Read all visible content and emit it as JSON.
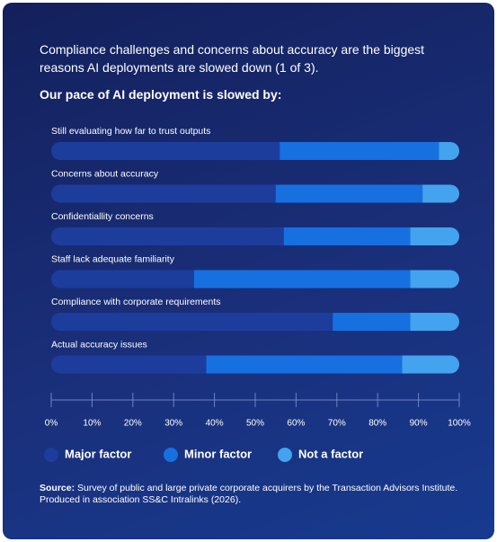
{
  "chart_data": {
    "type": "stacked-barh",
    "title": "Compliance challenges and concerns about accuracy are the biggest reasons AI deployments are slowed down (1 of 3).",
    "subtitle": "Our pace of AI deployment is slowed by:",
    "categories": [
      "Still evaluating how far to trust outputs",
      "Concerns about accuracy",
      "Confidentiallity concerns",
      "Staff lack adequate familiarity",
      "Compliance with corporate requirements",
      "Actual accuracy issues"
    ],
    "series": [
      {
        "name": "Major factor",
        "color": "#1d3d9c",
        "values": [
          56,
          55,
          57,
          35,
          69,
          38
        ]
      },
      {
        "name": "Minor factor",
        "color": "#1670e0",
        "values": [
          39,
          36,
          31,
          53,
          19,
          48
        ]
      },
      {
        "name": "Not a factor",
        "color": "#43a3ee",
        "values": [
          5,
          9,
          12,
          12,
          12,
          14
        ]
      }
    ],
    "xlim": [
      0,
      100
    ],
    "xticks": [
      {
        "value": 0,
        "label": "0%"
      },
      {
        "value": 10,
        "label": "10%"
      },
      {
        "value": 20,
        "label": "20%"
      },
      {
        "value": 30,
        "label": "30%"
      },
      {
        "value": 40,
        "label": "40%"
      },
      {
        "value": 50,
        "label": "50%"
      },
      {
        "value": 60,
        "label": "60%"
      },
      {
        "value": 70,
        "label": "70%"
      },
      {
        "value": 80,
        "label": "80%"
      },
      {
        "value": 90,
        "label": "90%"
      },
      {
        "value": 100,
        "label": "100%"
      }
    ],
    "source_label": "Source:",
    "source_text": "Survey of public and large private corporate acquirers by the Transaction Advisors Institute. Produced in association SS&C Intralinks (2026)."
  }
}
